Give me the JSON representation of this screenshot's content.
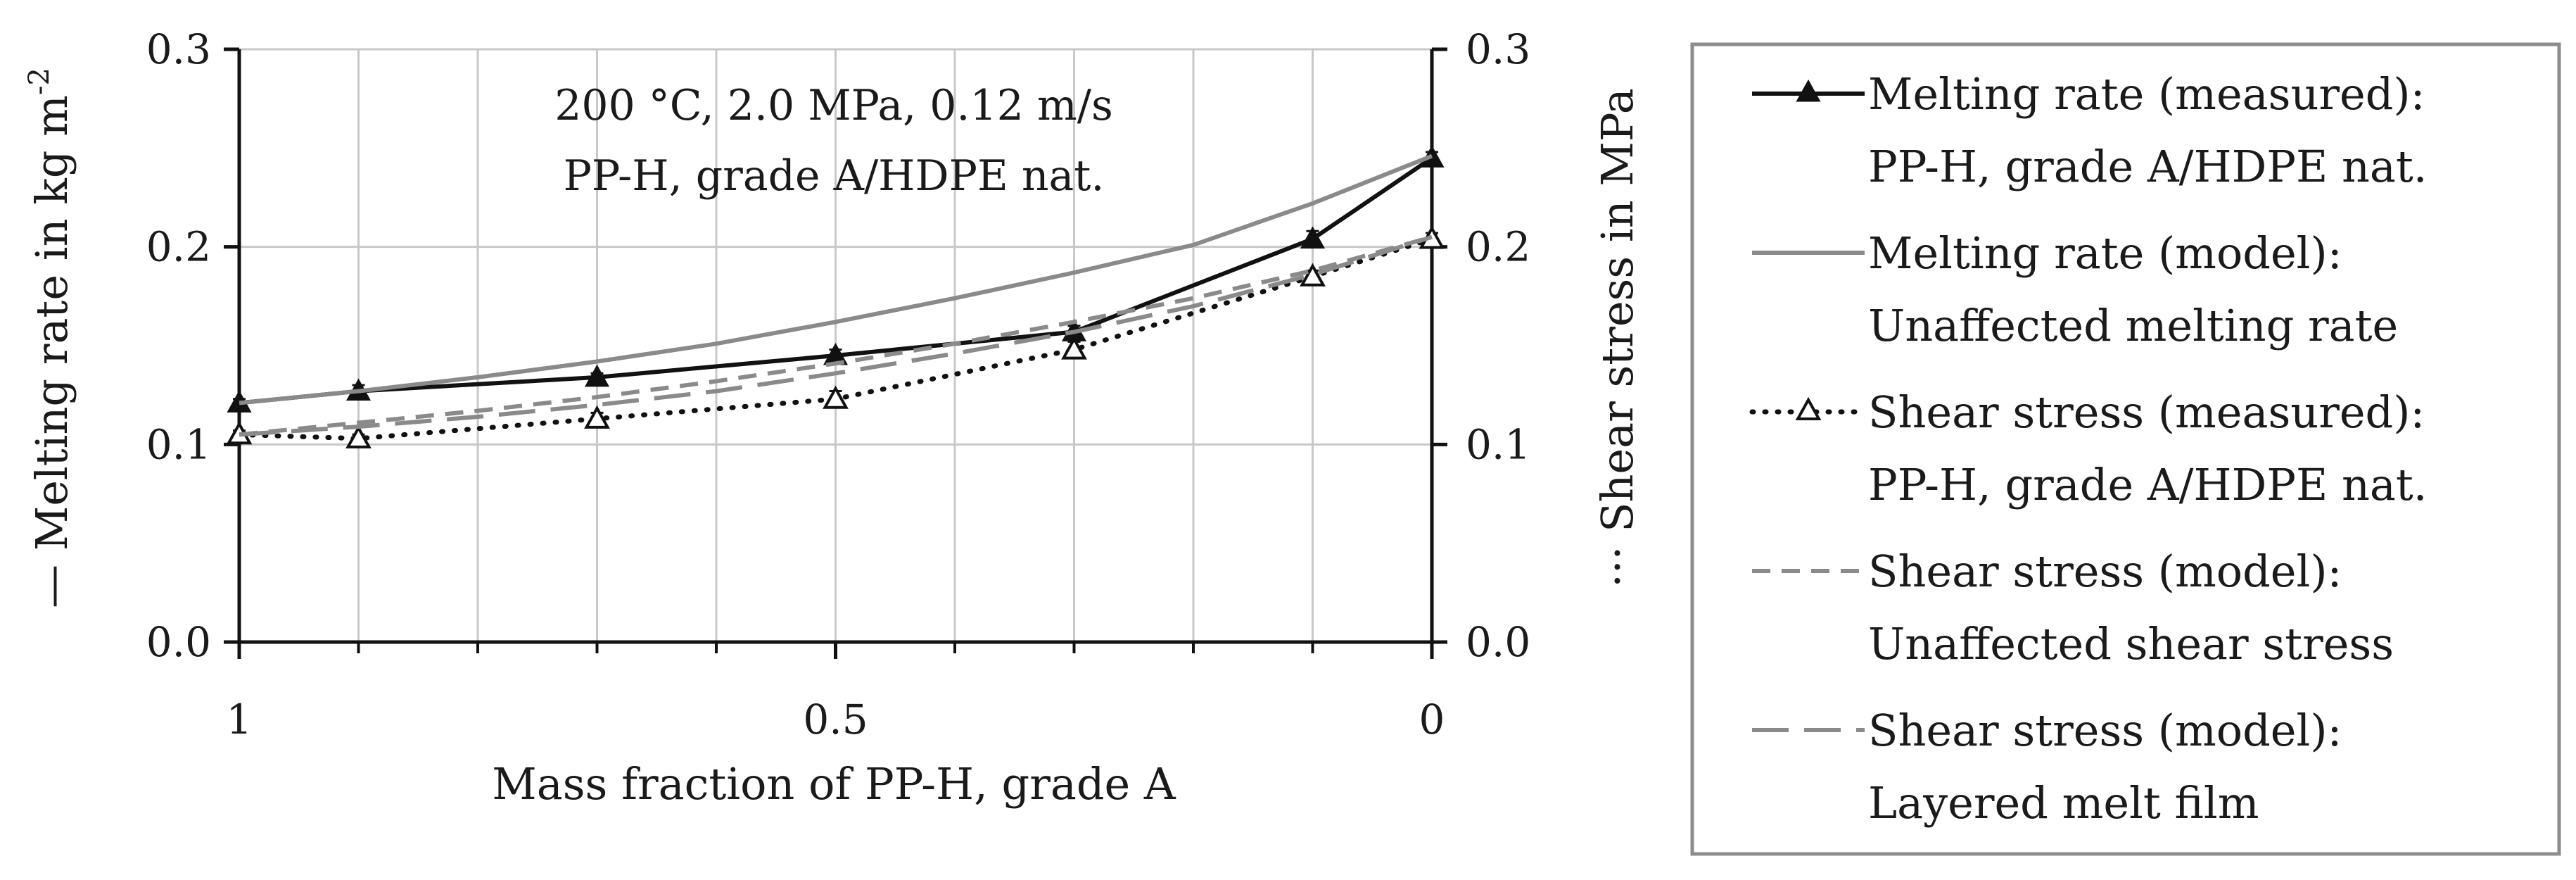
{
  "chart_data": {
    "type": "line",
    "annotation": [
      "200 °C, 2.0 MPa, 0.12 m/s",
      "PP-H, grade A/HDPE nat."
    ],
    "xlabel": "Mass fraction of PP-H, grade A",
    "ylabel": "— Melting rate in kg m",
    "ylabel_sup": "-2",
    "y2label": "··· Shear stress in MPa",
    "xlim": [
      1,
      0
    ],
    "ylim": [
      0,
      0.3
    ],
    "y2lim": [
      0,
      0.3
    ],
    "x_ticks": [
      1,
      0.5,
      0
    ],
    "x_tick_labels": [
      "1",
      "0.5",
      "0"
    ],
    "x_minor_ticks": [
      0.9,
      0.8,
      0.7,
      0.6,
      0.4,
      0.3,
      0.2,
      0.1
    ],
    "y_ticks": [
      0,
      0.1,
      0.2,
      0.3
    ],
    "y_tick_labels": [
      "0.0",
      "0.1",
      "0.2",
      "0.3"
    ],
    "y2_ticks": [
      0,
      0.1,
      0.2,
      0.3
    ],
    "y2_tick_labels": [
      "0.0",
      "0.1",
      "0.2",
      "0.3"
    ],
    "grid": true,
    "series": [
      {
        "name": "Melting rate (measured): PP-H, grade A/HDPE nat.",
        "legend_lines": [
          "Melting rate (measured):",
          "PP-H, grade A/HDPE nat."
        ],
        "axis": "left",
        "color": "#111111",
        "dash": "solid",
        "marker": "filled-triangle",
        "x": [
          1,
          0.9,
          0.7,
          0.5,
          0.3,
          0.1,
          0
        ],
        "y": [
          0.121,
          0.127,
          0.134,
          0.145,
          0.157,
          0.204,
          0.245
        ],
        "err": [
          0.002,
          0.003,
          0.002,
          0.003,
          0.003,
          0.004,
          0.003
        ]
      },
      {
        "name": "Melting rate (model): Unaffected melting rate",
        "legend_lines": [
          "Melting rate (model):",
          "Unaffected melting rate"
        ],
        "axis": "left",
        "color": "#8a8a8a",
        "dash": "solid",
        "marker": "none",
        "x": [
          1,
          0.9,
          0.8,
          0.7,
          0.6,
          0.5,
          0.4,
          0.3,
          0.2,
          0.1,
          0
        ],
        "y": [
          0.121,
          0.127,
          0.134,
          0.142,
          0.151,
          0.162,
          0.174,
          0.187,
          0.201,
          0.222,
          0.246
        ]
      },
      {
        "name": "Shear stress (measured): PP-H, grade A/HDPE nat.",
        "legend_lines": [
          "Shear stress (measured):",
          "PP-H, grade A/HDPE nat."
        ],
        "axis": "right",
        "color": "#111111",
        "dash": "dotted",
        "marker": "open-triangle",
        "x": [
          1,
          0.9,
          0.7,
          0.5,
          0.3,
          0.1,
          0
        ],
        "y": [
          0.105,
          0.103,
          0.113,
          0.123,
          0.148,
          0.185,
          0.204
        ],
        "err": [
          0.002,
          0.002,
          0.003,
          0.004,
          0.004,
          0.003,
          0.003
        ]
      },
      {
        "name": "Shear stress (model): Unaffected shear stress",
        "legend_lines": [
          "Shear stress (model):",
          "Unaffected shear stress"
        ],
        "axis": "right",
        "color": "#8a8a8a",
        "dash": "short-dash",
        "marker": "none",
        "x": [
          1,
          0.9,
          0.8,
          0.7,
          0.6,
          0.5,
          0.4,
          0.3,
          0.2,
          0.1,
          0
        ],
        "y": [
          0.105,
          0.111,
          0.117,
          0.124,
          0.132,
          0.141,
          0.151,
          0.162,
          0.174,
          0.188,
          0.205
        ]
      },
      {
        "name": "Shear stress (model): Layered melt film",
        "legend_lines": [
          "Shear stress (model):",
          "Layered melt film"
        ],
        "axis": "right",
        "color": "#8a8a8a",
        "dash": "long-dash",
        "marker": "none",
        "x": [
          1,
          0.9,
          0.8,
          0.7,
          0.6,
          0.5,
          0.4,
          0.3,
          0.2,
          0.1,
          0
        ],
        "y": [
          0.105,
          0.109,
          0.114,
          0.12,
          0.127,
          0.136,
          0.146,
          0.157,
          0.17,
          0.186,
          0.205
        ]
      }
    ],
    "legend_position": "right"
  }
}
